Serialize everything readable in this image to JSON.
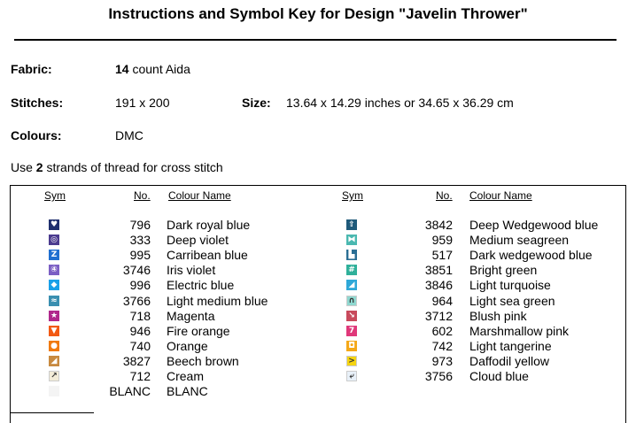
{
  "title": "Instructions and Symbol Key for Design \"Javelin Thrower\"",
  "fabric": {
    "label": "Fabric:",
    "count": "14",
    "rest": "count Aida"
  },
  "stitches": {
    "label": "Stitches:",
    "value": "191 x 200"
  },
  "size": {
    "label": "Size:",
    "value": "13.64 x 14.29 inches or 34.65 x 36.29 cm"
  },
  "colours": {
    "label": "Colours:",
    "value": "DMC"
  },
  "strands": {
    "pre": "Use",
    "count": "2",
    "post": "strands of thread for cross stitch"
  },
  "headers": {
    "sym": "Sym",
    "no": "No.",
    "name": "Colour Name"
  },
  "left": [
    {
      "no": "796",
      "name": "Dark royal blue",
      "color": "#1f2f6e",
      "glyph": "♥"
    },
    {
      "no": "333",
      "name": "Deep violet",
      "color": "#4b3b8f",
      "glyph": "◎"
    },
    {
      "no": "995",
      "name": "Carribean blue",
      "color": "#1f6fd0",
      "glyph": "Z"
    },
    {
      "no": "3746",
      "name": "Iris violet",
      "color": "#7b5fc4",
      "glyph": "④"
    },
    {
      "no": "996",
      "name": "Electric blue",
      "color": "#1aa0e8",
      "glyph": "◆"
    },
    {
      "no": "3766",
      "name": "Light medium blue",
      "color": "#3a8fb0",
      "glyph": "≈"
    },
    {
      "no": "718",
      "name": "Magenta",
      "color": "#b0288c",
      "glyph": "★"
    },
    {
      "no": "946",
      "name": "Fire orange",
      "color": "#f25a14",
      "glyph": "▼"
    },
    {
      "no": "740",
      "name": "Orange",
      "color": "#f07a10",
      "glyph": "●"
    },
    {
      "no": "3827",
      "name": "Beech brown",
      "color": "#c88a40",
      "glyph": "◢"
    },
    {
      "no": "712",
      "name": "Cream",
      "color": "#f3ecd8",
      "glyph": "↗",
      "dark": true
    },
    {
      "no": "BLANC",
      "name": "BLANC",
      "color": "#ffffff",
      "glyph": "",
      "dark": true
    }
  ],
  "right": [
    {
      "no": "3842",
      "name": "Deep Wedgewood blue",
      "color": "#1f5a7a",
      "glyph": "⇧"
    },
    {
      "no": "959",
      "name": "Medium seagreen",
      "color": "#4ab8b0",
      "glyph": "⧓"
    },
    {
      "no": "517",
      "name": "Dark wedgewood blue",
      "color": "#2a6e94",
      "glyph": "▙"
    },
    {
      "no": "3851",
      "name": "Bright green",
      "color": "#2fb09a",
      "glyph": "#"
    },
    {
      "no": "3846",
      "name": "Light turquoise",
      "color": "#2fa8d8",
      "glyph": "◢"
    },
    {
      "no": "964",
      "name": "Light sea green",
      "color": "#8fd8d0",
      "glyph": "∩",
      "dark": true
    },
    {
      "no": "3712",
      "name": "Blush pink",
      "color": "#c84a5c",
      "glyph": "↘"
    },
    {
      "no": "602",
      "name": "Marshmallow pink",
      "color": "#e0387a",
      "glyph": "7"
    },
    {
      "no": "742",
      "name": "Light tangerine",
      "color": "#f5a818",
      "glyph": "◘"
    },
    {
      "no": "973",
      "name": "Daffodil yellow",
      "color": "#f5d410",
      "glyph": ">",
      "dark": true
    },
    {
      "no": "3756",
      "name": "Cloud blue",
      "color": "#e8f0f8",
      "glyph": "⤶",
      "dark": true
    }
  ]
}
